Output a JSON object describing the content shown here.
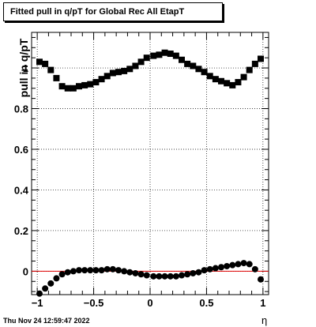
{
  "title": "Fitted pull in q/pT for Global Rec All EtapT",
  "timestamp": "Thu Nov 24 12:59:47 2022",
  "chart_data": {
    "type": "scatter",
    "title": "Fitted pull in q/pT for Global Rec All EtapT",
    "xlabel": "η",
    "ylabel": "pull in q/pT",
    "xlim": [
      -1.05,
      1.05
    ],
    "ylim": [
      -0.115,
      1.175
    ],
    "grid": true,
    "xticks": [
      -1,
      -0.5,
      0,
      0.5,
      1
    ],
    "xtick_labels": [
      "−1",
      "−0.5",
      "0",
      "0.5",
      "1"
    ],
    "yticks": [
      0,
      0.2,
      0.4,
      0.6,
      0.8,
      1
    ],
    "ytick_labels": [
      "0",
      "0.2",
      "0.4",
      "0.6",
      "0.8",
      "1"
    ],
    "reference_line": {
      "y": 0,
      "color": "#e00000"
    },
    "series": [
      {
        "marker": "square",
        "color": "#000000",
        "x": [
          -0.98,
          -0.93,
          -0.88,
          -0.83,
          -0.78,
          -0.73,
          -0.68,
          -0.63,
          -0.58,
          -0.53,
          -0.48,
          -0.43,
          -0.38,
          -0.33,
          -0.28,
          -0.23,
          -0.18,
          -0.13,
          -0.08,
          -0.03,
          0.03,
          0.08,
          0.13,
          0.18,
          0.23,
          0.28,
          0.33,
          0.38,
          0.43,
          0.48,
          0.53,
          0.58,
          0.63,
          0.68,
          0.73,
          0.78,
          0.83,
          0.88,
          0.93,
          0.98
        ],
        "y": [
          1.03,
          1.02,
          0.99,
          0.95,
          0.91,
          0.9,
          0.9,
          0.91,
          0.915,
          0.92,
          0.93,
          0.945,
          0.96,
          0.975,
          0.98,
          0.985,
          0.995,
          1.01,
          1.03,
          1.05,
          1.06,
          1.065,
          1.075,
          1.07,
          1.06,
          1.04,
          1.02,
          1.01,
          0.995,
          0.98,
          0.96,
          0.945,
          0.935,
          0.925,
          0.915,
          0.93,
          0.955,
          0.99,
          1.02,
          1.045
        ]
      },
      {
        "marker": "circle",
        "color": "#000000",
        "x": [
          -0.98,
          -0.93,
          -0.88,
          -0.83,
          -0.78,
          -0.73,
          -0.68,
          -0.63,
          -0.58,
          -0.53,
          -0.48,
          -0.43,
          -0.38,
          -0.33,
          -0.28,
          -0.23,
          -0.18,
          -0.13,
          -0.08,
          -0.03,
          0.03,
          0.08,
          0.13,
          0.18,
          0.23,
          0.28,
          0.33,
          0.38,
          0.43,
          0.48,
          0.53,
          0.58,
          0.63,
          0.68,
          0.73,
          0.78,
          0.83,
          0.88,
          0.93,
          0.98
        ],
        "y": [
          -0.11,
          -0.085,
          -0.06,
          -0.035,
          -0.015,
          -0.005,
          0.0,
          0.005,
          0.005,
          0.005,
          0.005,
          0.005,
          0.01,
          0.01,
          0.005,
          0.0,
          -0.005,
          -0.01,
          -0.015,
          -0.02,
          -0.025,
          -0.025,
          -0.025,
          -0.025,
          -0.025,
          -0.02,
          -0.015,
          -0.01,
          -0.005,
          0.005,
          0.01,
          0.015,
          0.02,
          0.025,
          0.03,
          0.035,
          0.04,
          0.035,
          0.01,
          -0.04
        ]
      }
    ]
  }
}
